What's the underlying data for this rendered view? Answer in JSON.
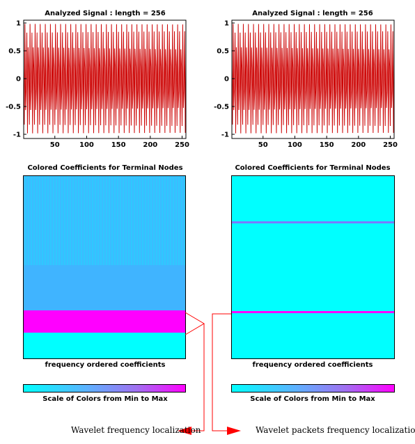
{
  "colors": {
    "signal": "#cc0000",
    "cyan": "#00ffff",
    "blue": "#40b4ff",
    "magenta": "#ff00ff",
    "arrow": "#ff0000"
  },
  "chart_data": [
    {
      "type": "line",
      "title": "Analyzed Signal : length = 256",
      "signal": "sin(2*pi*k*16/42.67)",
      "x_range": [
        1,
        256
      ],
      "ylim": [
        -1,
        1
      ],
      "xticks": [
        50,
        100,
        150,
        200,
        250
      ],
      "yticks": [
        1,
        0.5,
        0,
        -0.5,
        -1
      ],
      "ytick_labels": [
        "1",
        "0.5",
        "0",
        "-0.5",
        "-1"
      ]
    },
    {
      "type": "line",
      "title": "Analyzed Signal : length = 256",
      "signal": "sin(2*pi*k*16/42.67)",
      "x_range": [
        1,
        256
      ],
      "ylim": [
        -1,
        1
      ],
      "xticks": [
        50,
        100,
        150,
        200,
        250
      ],
      "yticks": [
        1,
        0.5,
        0,
        -0.5,
        -1
      ],
      "ytick_labels": [
        "1",
        "0.5",
        "0",
        "-0.5",
        "-1"
      ]
    },
    {
      "type": "heatmap",
      "title": "Colored Coefficients for Terminal Nodes",
      "xlabel": "frequency ordered coefficients",
      "colorbar_label": "Scale of Colors from Min to Max",
      "bands": [
        {
          "from": 0,
          "to": 0.49,
          "color": "#34c0ff",
          "striped": true
        },
        {
          "from": 0.49,
          "to": 0.735,
          "color": "#40b4ff"
        },
        {
          "from": 0.735,
          "to": 0.86,
          "color": "#ff00ff"
        },
        {
          "from": 0.86,
          "to": 1,
          "color": "#00ffff"
        }
      ]
    },
    {
      "type": "heatmap",
      "title": "Colored Coefficients for Terminal Nodes",
      "xlabel": "frequency ordered coefficients",
      "colorbar_label": "Scale of Colors from Min to Max",
      "background": "#00ffff",
      "lines": [
        {
          "at": 0.25,
          "color": "#7a7aff"
        },
        {
          "at": 0.745,
          "color": "#ff00ff"
        }
      ]
    }
  ],
  "annotations": {
    "left": "Wavelet frequency localization",
    "right": "Wavelet packets frequency localization"
  }
}
